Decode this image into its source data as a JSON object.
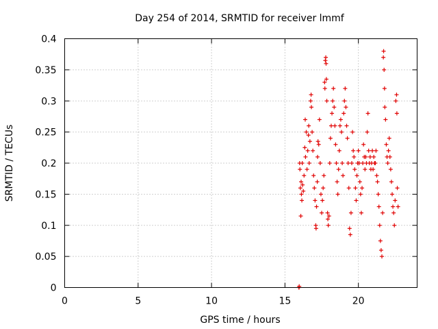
{
  "chart_data": {
    "type": "scatter",
    "title": "Day 254 of 2014, SRMTID for receiver lmmf",
    "xlabel": "GPS time / hours",
    "ylabel": "SRMTID / TECUs",
    "xlim": [
      0,
      24
    ],
    "ylim": [
      0,
      0.4
    ],
    "xticks": [
      0,
      5,
      10,
      15,
      20
    ],
    "xtick_labels": [
      "0",
      "5",
      "10",
      "15",
      "20"
    ],
    "yticks": [
      0,
      0.05,
      0.1,
      0.15,
      0.2,
      0.25,
      0.3,
      0.35,
      0.4
    ],
    "ytick_labels": [
      "0",
      "0.05",
      "0.1",
      "0.15",
      "0.2",
      "0.25",
      "0.3",
      "0.35",
      "0.4"
    ],
    "grid": true,
    "marker": "plus",
    "series": [
      {
        "name": "SRMTID",
        "color": "#e00000",
        "points": [
          [
            15.95,
            0.0
          ],
          [
            15.96,
            0.0
          ],
          [
            15.97,
            0.002
          ],
          [
            16.0,
            0.2
          ],
          [
            16.02,
            0.19
          ],
          [
            16.05,
            0.16
          ],
          [
            16.08,
            0.115
          ],
          [
            16.1,
            0.17
          ],
          [
            16.12,
            0.15
          ],
          [
            16.15,
            0.14
          ],
          [
            16.18,
            0.2
          ],
          [
            16.2,
            0.165
          ],
          [
            16.25,
            0.155
          ],
          [
            16.3,
            0.18
          ],
          [
            16.35,
            0.225
          ],
          [
            16.38,
            0.27
          ],
          [
            16.4,
            0.21
          ],
          [
            16.45,
            0.25
          ],
          [
            16.5,
            0.19
          ],
          [
            16.55,
            0.22
          ],
          [
            16.6,
            0.245
          ],
          [
            16.62,
            0.26
          ],
          [
            16.65,
            0.2
          ],
          [
            16.7,
            0.235
          ],
          [
            16.75,
            0.3
          ],
          [
            16.78,
            0.31
          ],
          [
            16.8,
            0.29
          ],
          [
            16.85,
            0.25
          ],
          [
            16.9,
            0.22
          ],
          [
            16.95,
            0.18
          ],
          [
            17.0,
            0.16
          ],
          [
            17.05,
            0.14
          ],
          [
            17.1,
            0.1
          ],
          [
            17.12,
            0.095
          ],
          [
            17.15,
            0.13
          ],
          [
            17.2,
            0.17
          ],
          [
            17.22,
            0.21
          ],
          [
            17.25,
            0.235
          ],
          [
            17.3,
            0.23
          ],
          [
            17.35,
            0.27
          ],
          [
            17.4,
            0.2
          ],
          [
            17.45,
            0.15
          ],
          [
            17.5,
            0.12
          ],
          [
            17.55,
            0.14
          ],
          [
            17.6,
            0.16
          ],
          [
            17.65,
            0.18
          ],
          [
            17.7,
            0.33
          ],
          [
            17.72,
            0.32
          ],
          [
            17.75,
            0.365
          ],
          [
            17.78,
            0.37
          ],
          [
            17.8,
            0.36
          ],
          [
            17.82,
            0.335
          ],
          [
            17.85,
            0.3
          ],
          [
            17.9,
            0.12
          ],
          [
            17.92,
            0.11
          ],
          [
            17.95,
            0.1
          ],
          [
            18.0,
            0.115
          ],
          [
            18.05,
            0.2
          ],
          [
            18.1,
            0.24
          ],
          [
            18.15,
            0.26
          ],
          [
            18.2,
            0.28
          ],
          [
            18.25,
            0.3
          ],
          [
            18.3,
            0.32
          ],
          [
            18.35,
            0.29
          ],
          [
            18.4,
            0.26
          ],
          [
            18.45,
            0.23
          ],
          [
            18.5,
            0.2
          ],
          [
            18.55,
            0.17
          ],
          [
            18.6,
            0.15
          ],
          [
            18.65,
            0.19
          ],
          [
            18.7,
            0.22
          ],
          [
            18.75,
            0.26
          ],
          [
            18.8,
            0.27
          ],
          [
            18.85,
            0.25
          ],
          [
            18.9,
            0.2
          ],
          [
            18.95,
            0.18
          ],
          [
            19.0,
            0.28
          ],
          [
            19.05,
            0.3
          ],
          [
            19.1,
            0.32
          ],
          [
            19.15,
            0.29
          ],
          [
            19.2,
            0.26
          ],
          [
            19.25,
            0.24
          ],
          [
            19.3,
            0.2
          ],
          [
            19.35,
            0.16
          ],
          [
            19.4,
            0.095
          ],
          [
            19.45,
            0.085
          ],
          [
            19.5,
            0.12
          ],
          [
            19.55,
            0.2
          ],
          [
            19.6,
            0.25
          ],
          [
            19.65,
            0.22
          ],
          [
            19.7,
            0.21
          ],
          [
            19.75,
            0.19
          ],
          [
            19.8,
            0.16
          ],
          [
            19.85,
            0.14
          ],
          [
            19.9,
            0.18
          ],
          [
            19.95,
            0.2
          ],
          [
            20.0,
            0.22
          ],
          [
            20.05,
            0.2
          ],
          [
            20.1,
            0.17
          ],
          [
            20.15,
            0.15
          ],
          [
            20.2,
            0.12
          ],
          [
            20.25,
            0.16
          ],
          [
            20.3,
            0.2
          ],
          [
            20.35,
            0.23
          ],
          [
            20.4,
            0.21
          ],
          [
            20.45,
            0.19
          ],
          [
            20.5,
            0.21
          ],
          [
            20.55,
            0.2
          ],
          [
            20.6,
            0.25
          ],
          [
            20.65,
            0.28
          ],
          [
            20.7,
            0.22
          ],
          [
            20.75,
            0.2
          ],
          [
            20.8,
            0.21
          ],
          [
            20.85,
            0.19
          ],
          [
            20.9,
            0.2
          ],
          [
            20.95,
            0.22
          ],
          [
            21.0,
            0.19
          ],
          [
            21.05,
            0.21
          ],
          [
            21.1,
            0.2
          ],
          [
            21.15,
            0.2
          ],
          [
            21.2,
            0.22
          ],
          [
            21.25,
            0.18
          ],
          [
            21.3,
            0.17
          ],
          [
            21.35,
            0.15
          ],
          [
            21.4,
            0.13
          ],
          [
            21.45,
            0.1
          ],
          [
            21.5,
            0.075
          ],
          [
            21.55,
            0.06
          ],
          [
            21.6,
            0.05
          ],
          [
            21.65,
            0.12
          ],
          [
            21.7,
            0.37
          ],
          [
            21.72,
            0.38
          ],
          [
            21.75,
            0.35
          ],
          [
            21.78,
            0.32
          ],
          [
            21.8,
            0.29
          ],
          [
            21.85,
            0.27
          ],
          [
            21.9,
            0.23
          ],
          [
            21.95,
            0.21
          ],
          [
            22.0,
            0.2
          ],
          [
            22.05,
            0.22
          ],
          [
            22.1,
            0.24
          ],
          [
            22.15,
            0.21
          ],
          [
            22.2,
            0.19
          ],
          [
            22.25,
            0.17
          ],
          [
            22.3,
            0.15
          ],
          [
            22.35,
            0.13
          ],
          [
            22.4,
            0.12
          ],
          [
            22.45,
            0.1
          ],
          [
            22.5,
            0.14
          ],
          [
            22.55,
            0.3
          ],
          [
            22.6,
            0.31
          ],
          [
            22.62,
            0.28
          ],
          [
            22.65,
            0.16
          ],
          [
            22.7,
            0.13
          ]
        ]
      }
    ]
  }
}
